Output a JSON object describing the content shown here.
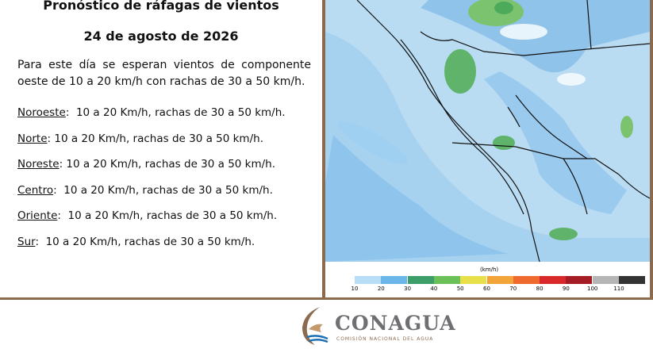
{
  "header": {
    "title": "Pronóstico de ráfagas de vientos",
    "date": "24 de agosto de 2026"
  },
  "intro": "Para este día se esperan vientos de componente oeste de 10 a 20 km/h con rachas de 30 a 50 km/h.",
  "regions": [
    {
      "name": "Noroeste",
      "text": ":  10 a 20 Km/h, rachas de 30 a 50 km/h."
    },
    {
      "name": "Norte",
      "text": ": 10 a 20 Km/h, rachas de 30 a 50 km/h."
    },
    {
      "name": "Noreste",
      "text": ": 10 a 20 Km/h, rachas de 30 a 50 km/h."
    },
    {
      "name": "Centro",
      "text": ":  10 a 20 Km/h, rachas de 30 a 50 km/h."
    },
    {
      "name": "Oriente",
      "text": ":  10 a 20 Km/h, rachas de 30 a 50 km/h."
    },
    {
      "name": "Sur",
      "text": ":  10 a 20 Km/h, rachas de 30 a 50 km/h."
    }
  ],
  "legend": {
    "unit": "(km/h)",
    "labels": [
      10,
      20,
      30,
      40,
      50,
      60,
      70,
      80,
      90,
      100,
      110
    ]
  },
  "logo": {
    "name": "CONAGUA",
    "subtitle": "COMISIÓN NACIONAL DEL AGUA"
  }
}
